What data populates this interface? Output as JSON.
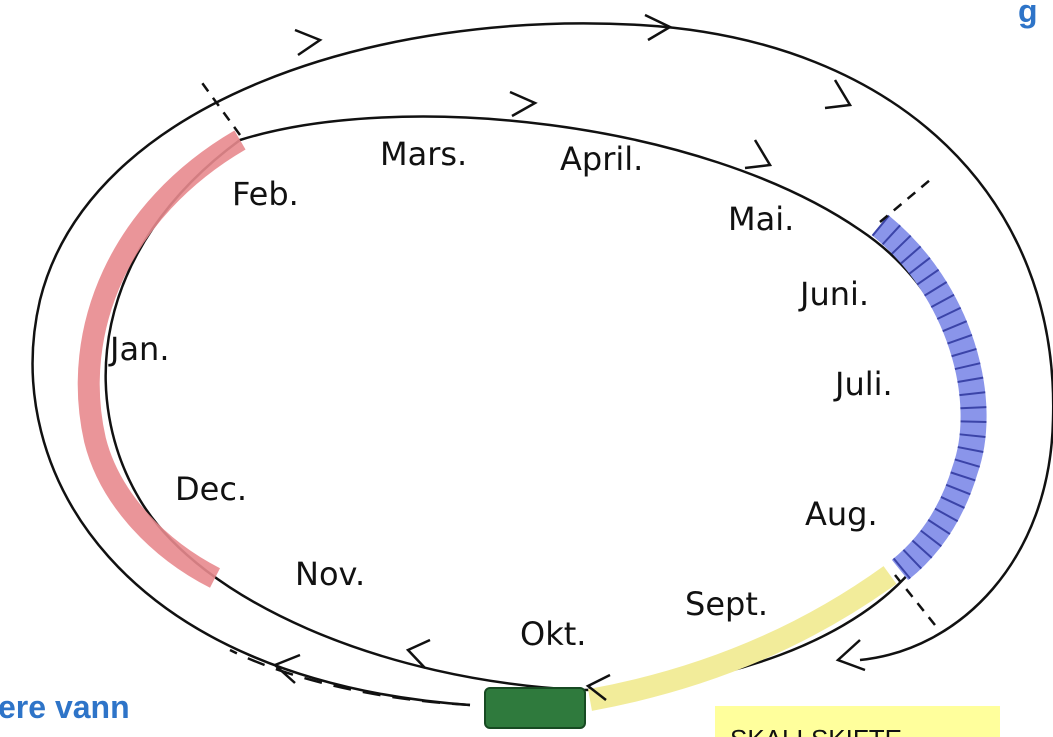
{
  "months": [
    "Feb.",
    "Mars.",
    "April.",
    "Mai.",
    "Juni.",
    "Juli.",
    "Aug.",
    "Sept.",
    "Okt.",
    "Nov.",
    "Dec.",
    "Jan."
  ],
  "captions": {
    "top_right": "g",
    "bottom_left": "ere vann",
    "bottom_right": "SKALLSKIFTE"
  }
}
